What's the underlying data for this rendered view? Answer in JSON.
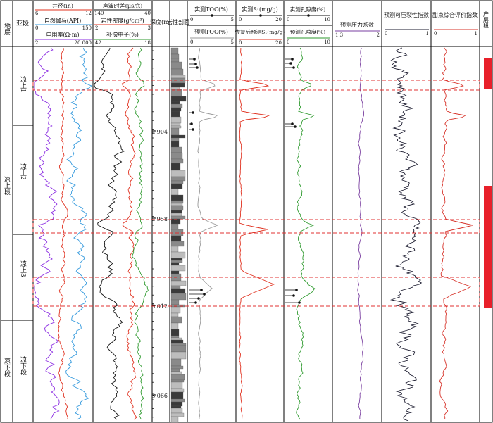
{
  "header": {
    "col_layer": "地层",
    "col_subsection": "亚段",
    "col_lithology": "岩性剖面",
    "col_depth": "深度(m)",
    "col_production": "产层段",
    "track1": {
      "curves": [
        {
          "name": "井径(in)",
          "min": "6",
          "max": "12",
          "color": "#e0301e"
        },
        {
          "name": "自然伽马(API)",
          "min": "0",
          "max": "150",
          "color": "#3399dd"
        },
        {
          "name": "电阻率(Ω·m)",
          "min": "2",
          "max": "20 000",
          "color": "#8a2be2"
        }
      ]
    },
    "track2": {
      "curves": [
        {
          "name": "声波时差(μs/ft)",
          "min": "140",
          "max": "40",
          "color": "#111111"
        },
        {
          "name": "岩性密度(g/cm³)",
          "min": "2",
          "max": "3",
          "color": "#e0301e"
        },
        {
          "name": "补偿中子(%)",
          "min": "42",
          "max": "18",
          "color": "#2e9a2e"
        }
      ]
    },
    "track_toc": {
      "top_label": "实测TOC(%)",
      "top_min": "0",
      "top_max": "5",
      "bottom_label": "预测TOC(%)",
      "bottom_min": "0",
      "bottom_max": "5"
    },
    "track_s1": {
      "top_label": "实测S₁(mg/g)",
      "top_min": "0",
      "top_max": "20",
      "bottom_label": "恢复后预测S₁(mg/g)",
      "bottom_min": "0",
      "bottom_max": "20"
    },
    "track_por": {
      "top_label": "实测孔隙度(%)",
      "top_min": "0",
      "top_max": "10",
      "bottom_label": "预测孔隙度(%)",
      "bottom_min": "0",
      "bottom_max": "10"
    },
    "track_pressure": {
      "label": "预测压力系数",
      "min": "1.3",
      "max": "2"
    },
    "track_frac": {
      "label": "预测可压裂性指数",
      "min": "0",
      "max": "1"
    },
    "track_sweet": {
      "label": "甜点综合评价指数",
      "min": "0",
      "max": "1"
    }
  },
  "strata": {
    "formation": "凉上段",
    "lower": "凉下段",
    "subsections": [
      "凉上1",
      "凉上2",
      "凉上3",
      "凉下段"
    ]
  },
  "depth_marks": [
    "2 904",
    "2 958",
    "3 012",
    "3 066"
  ],
  "colors": {
    "caliper": "#e0301e",
    "gamma": "#3399dd",
    "resistivity": "#8a2be2",
    "acoustic": "#111111",
    "density": "#e0301e",
    "neutron": "#2e9a2e",
    "toc_pred": "#999999",
    "s1_pred": "#e0301e",
    "por_pred": "#2e9a2e",
    "pressure": "#7a3fa0",
    "frac": "#1a1a2e",
    "sweet": "#d7332a",
    "production": "#e8202a",
    "dashed_box": "#e03030"
  }
}
